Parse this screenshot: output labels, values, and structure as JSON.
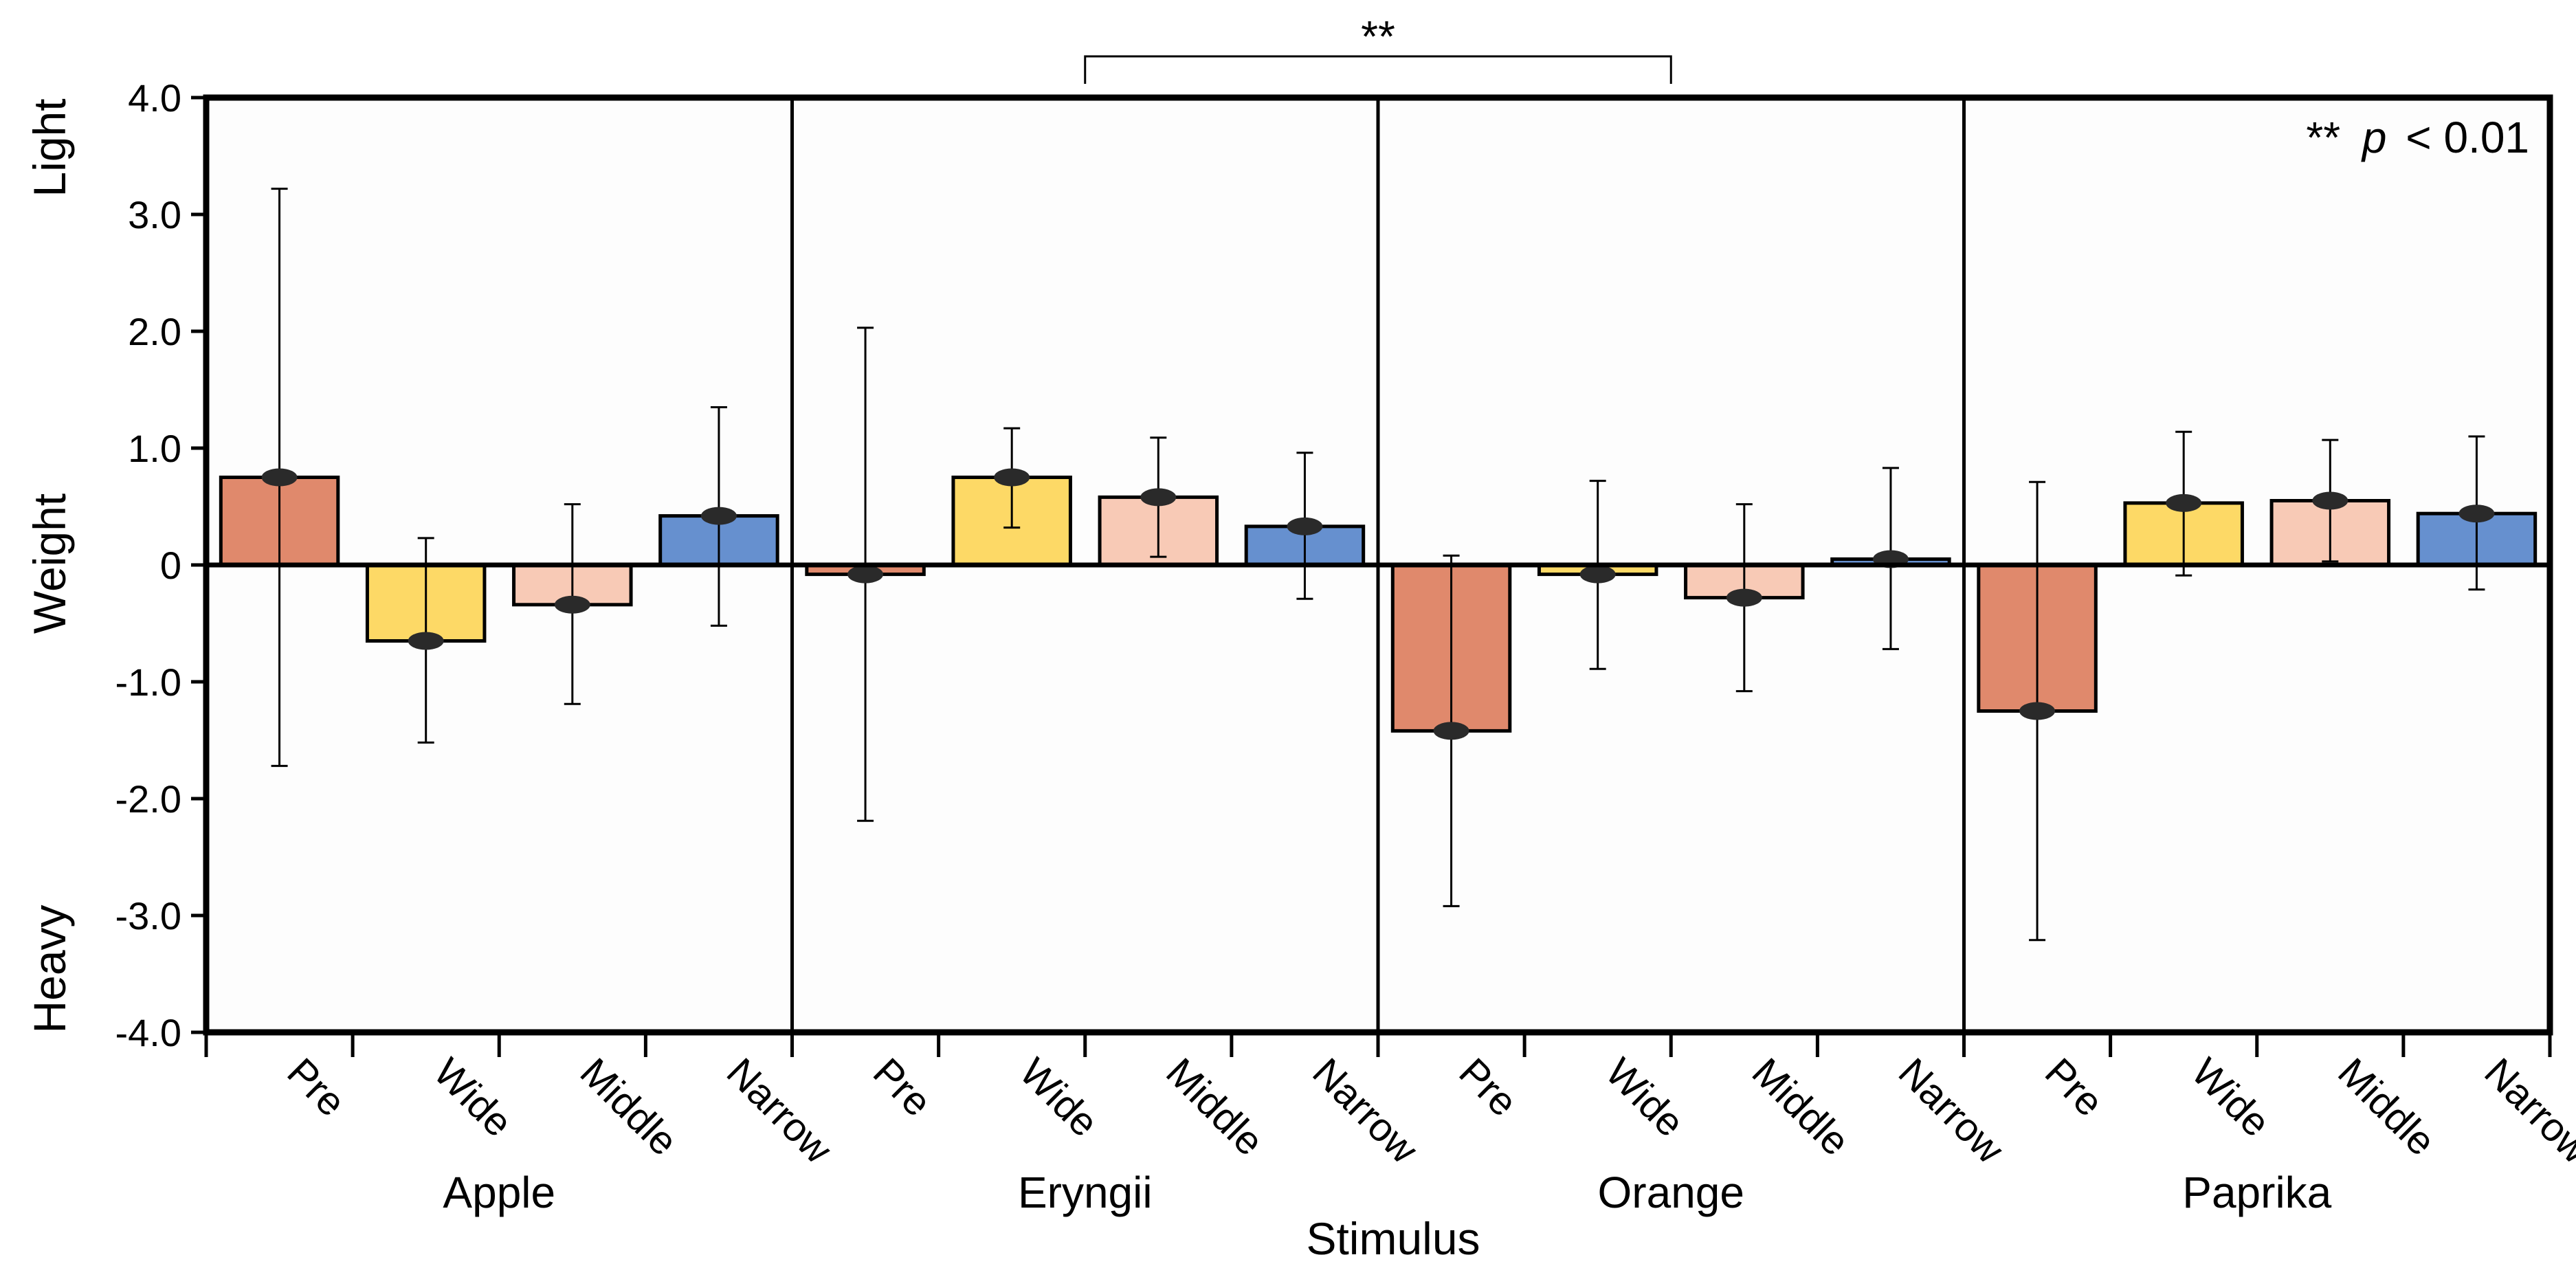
{
  "chart_data": {
    "type": "bar",
    "xlabel": "Stimulus",
    "ylabel": "Weight",
    "ylabel_top": "Light",
    "ylabel_bottom": "Heavy",
    "ylim": [
      -4.0,
      4.0
    ],
    "yticks": [
      4.0,
      3.0,
      2.0,
      1.0,
      0,
      -1.0,
      -2.0,
      -3.0,
      -4.0
    ],
    "ytick_labels": [
      "4.0",
      "3.0",
      "2.0",
      "1.0",
      "0",
      "-1.0",
      "-2.0",
      "-3.0",
      "-4.0"
    ],
    "categories": [
      "Pre",
      "Wide",
      "Middle",
      "Narrow"
    ],
    "category_colors": {
      "Pre": "#e0896c",
      "Wide": "#fdd966",
      "Middle": "#f8cab6",
      "Narrow": "#6690cf"
    },
    "groups": [
      {
        "name": "Apple",
        "bars": [
          {
            "category": "Pre",
            "value": 0.75,
            "err_low": -1.72,
            "err_high": 3.22
          },
          {
            "category": "Wide",
            "value": -0.65,
            "err_low": -1.52,
            "err_high": 0.23
          },
          {
            "category": "Middle",
            "value": -0.34,
            "err_low": -1.19,
            "err_high": 0.52
          },
          {
            "category": "Narrow",
            "value": 0.42,
            "err_low": -0.52,
            "err_high": 1.35
          }
        ]
      },
      {
        "name": "Eryngii",
        "bars": [
          {
            "category": "Pre",
            "value": -0.08,
            "err_low": -2.19,
            "err_high": 2.03
          },
          {
            "category": "Wide",
            "value": 0.75,
            "err_low": 0.32,
            "err_high": 1.17
          },
          {
            "category": "Middle",
            "value": 0.58,
            "err_low": 0.07,
            "err_high": 1.09
          },
          {
            "category": "Narrow",
            "value": 0.33,
            "err_low": -0.29,
            "err_high": 0.96
          }
        ]
      },
      {
        "name": "Orange",
        "bars": [
          {
            "category": "Pre",
            "value": -1.42,
            "err_low": -2.92,
            "err_high": 0.08
          },
          {
            "category": "Wide",
            "value": -0.08,
            "err_low": -0.89,
            "err_high": 0.72
          },
          {
            "category": "Middle",
            "value": -0.28,
            "err_low": -1.08,
            "err_high": 0.52
          },
          {
            "category": "Narrow",
            "value": 0.05,
            "err_low": -0.72,
            "err_high": 0.83
          }
        ]
      },
      {
        "name": "Paprika",
        "bars": [
          {
            "category": "Pre",
            "value": -1.25,
            "err_low": -3.21,
            "err_high": 0.71
          },
          {
            "category": "Wide",
            "value": 0.53,
            "err_low": -0.09,
            "err_high": 1.14
          },
          {
            "category": "Middle",
            "value": 0.55,
            "err_low": 0.03,
            "err_high": 1.07
          },
          {
            "category": "Narrow",
            "value": 0.44,
            "err_low": -0.21,
            "err_high": 1.1
          }
        ]
      }
    ],
    "significance": {
      "label": "**",
      "between": [
        "Eryngii",
        "Orange"
      ],
      "legend_stars": "**",
      "legend_p": "p",
      "legend_rest": "< 0.01"
    }
  }
}
